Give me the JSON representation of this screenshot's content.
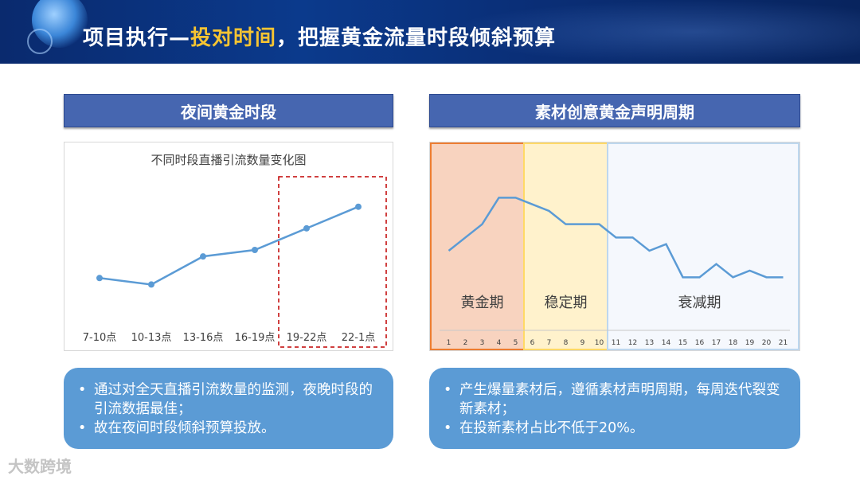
{
  "title": {
    "prefix": "项目执行—",
    "highlight": "投对时间",
    "suffix": "，把握黄金流量时段倾斜预算"
  },
  "left": {
    "header": "夜间黄金时段",
    "bullets": [
      "通过对全天直播引流数量的监测，夜晚时段的引流数据最佳；",
      "故在夜间时段倾斜预算投放。"
    ]
  },
  "right": {
    "header": "素材创意黄金声明周期",
    "bullets": [
      "产生爆量素材后，遵循素材声明周期，每周迭代裂变新素材；",
      "在投新素材占比不低于20%。"
    ]
  },
  "watermark": "大数跨境",
  "colors": {
    "banner": "#0a2f78",
    "header": "#4666b0",
    "box": "#5b9bd5",
    "line": "#5b9bd5",
    "highlight": "#f6c432"
  },
  "chart_data": [
    {
      "type": "line",
      "title": "不同时段直播引流数量变化图",
      "categories": [
        "7-10点",
        "10-13点",
        "13-16点",
        "16-19点",
        "19-22点",
        "22-1点"
      ],
      "values": [
        22,
        19,
        32,
        35,
        45,
        55
      ],
      "ylim": [
        0,
        70
      ],
      "highlight_categories": [
        "19-22点",
        "22-1点"
      ],
      "grid": false
    },
    {
      "type": "line",
      "categories": [
        1,
        2,
        3,
        4,
        5,
        6,
        7,
        8,
        9,
        10,
        11,
        12,
        13,
        14,
        15,
        16,
        17,
        18,
        19,
        20,
        21
      ],
      "values": [
        60,
        70,
        80,
        100,
        100,
        95,
        90,
        80,
        80,
        80,
        70,
        70,
        60,
        65,
        40,
        40,
        50,
        40,
        45,
        40,
        40
      ],
      "ylim": [
        0,
        120
      ],
      "phases": [
        {
          "label": "黄金期",
          "from": 1,
          "to": 5,
          "color": "#f8d3bf",
          "border": "#ed7d31"
        },
        {
          "label": "稳定期",
          "from": 6,
          "to": 10,
          "color": "#fff2cc",
          "border": "#ffd966"
        },
        {
          "label": "衰减期",
          "from": 11,
          "to": 21,
          "color": "#f5f8fd",
          "border": "#bdd7ee"
        }
      ]
    }
  ]
}
